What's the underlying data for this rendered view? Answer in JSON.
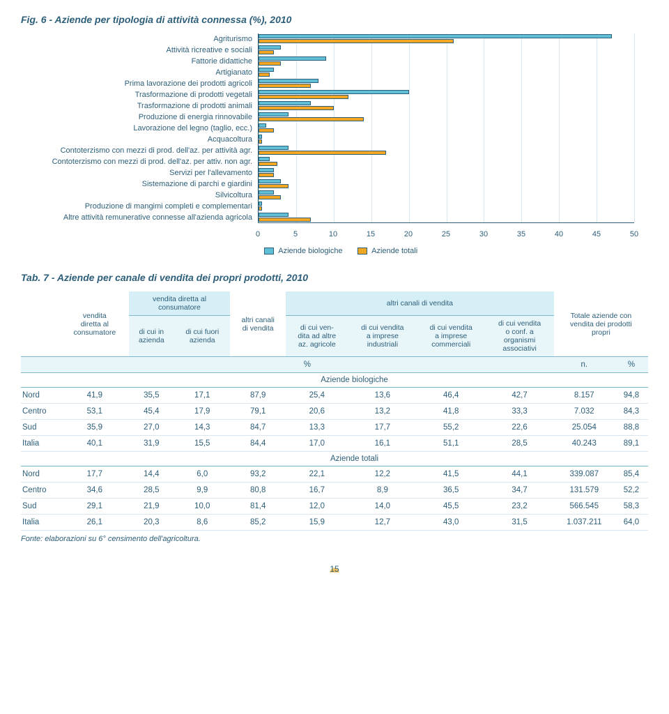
{
  "fig": {
    "title": "Fig. 6 - Aziende per tipologia di attività connessa (%), 2010",
    "categories": [
      "Agriturismo",
      "Attività ricreative e sociali",
      "Fattorie didattiche",
      "Artigianato",
      "Prima lavorazione dei prodotti agricoli",
      "Trasformazione di prodotti vegetali",
      "Trasformazione di prodotti animali",
      "Produzione di energia rinnovabile",
      "Lavorazione del legno (taglio, ecc.)",
      "Acquacoltura",
      "Contoterzismo con mezzi di prod. dell'az. per attività agr.",
      "Contoterzismo con mezzi di prod. dell'az. per attiv. non agr.",
      "Servizi per l'allevamento",
      "Sistemazione di parchi e giardini",
      "Silvicoltura",
      "Produzione di mangimi completi e complementari",
      "Altre attività remunerative connesse all'azienda agricola"
    ],
    "bio": [
      47,
      3,
      9,
      2,
      8,
      20,
      7,
      4,
      1,
      0.5,
      4,
      1.5,
      2,
      3,
      2,
      0.5,
      4
    ],
    "tot": [
      26,
      2,
      3,
      1.5,
      7,
      12,
      10,
      14,
      2,
      0.5,
      17,
      2.5,
      2,
      4,
      3,
      0.5,
      7
    ],
    "xmax": 50,
    "xtick_step": 5,
    "bar_colors": {
      "bio": "#5fbfd6",
      "tot": "#f5a623"
    },
    "grid_color": "#d9e6ed",
    "axis_color": "#2d5f7a",
    "legend": {
      "bio": "Aziende biologiche",
      "tot": "Aziende totali"
    }
  },
  "tab": {
    "title": "Tab. 7 - Aziende per canale di vendita dei propri prodotti, 2010",
    "headers": {
      "vendita": "vendita\ndiretta al\nconsumatore",
      "vend_group": "vendita diretta al\nconsumatore",
      "in_az": "di cui in\nazienda",
      "fuori_az": "di cui fuori\nazienda",
      "altri": "altri canali\ndi vendita",
      "altri_group": "altri canali di vendita",
      "ad_altre": "di cui ven-\ndita ad altre\naz. agricole",
      "industriali": "di cui vendita\na imprese\nindustriali",
      "commerciali": "di cui vendita\na imprese\ncommerciali",
      "organismi": "di cui vendita\no conf. a\norganismi\nassociativi",
      "totale": "Totale aziende con\nvendita dei prodotti\npropri",
      "pct": "%",
      "n": "n.",
      "bio_section": "Aziende biologiche",
      "tot_section": "Aziende totali"
    },
    "row_labels": [
      "Nord",
      "Centro",
      "Sud",
      "Italia"
    ],
    "bio_rows": [
      [
        "41,9",
        "35,5",
        "17,1",
        "87,9",
        "25,4",
        "13,6",
        "46,4",
        "42,7",
        "8.157",
        "94,8"
      ],
      [
        "53,1",
        "45,4",
        "17,9",
        "79,1",
        "20,6",
        "13,2",
        "41,8",
        "33,3",
        "7.032",
        "84,3"
      ],
      [
        "35,9",
        "27,0",
        "14,3",
        "84,7",
        "13,3",
        "17,7",
        "55,2",
        "22,6",
        "25.054",
        "88,8"
      ],
      [
        "40,1",
        "31,9",
        "15,5",
        "84,4",
        "17,0",
        "16,1",
        "51,1",
        "28,5",
        "40.243",
        "89,1"
      ]
    ],
    "tot_rows": [
      [
        "17,7",
        "14,4",
        "6,0",
        "93,2",
        "22,1",
        "12,2",
        "41,5",
        "44,1",
        "339.087",
        "85,4"
      ],
      [
        "34,6",
        "28,5",
        "9,9",
        "80,8",
        "16,7",
        "8,9",
        "36,5",
        "34,7",
        "131.579",
        "52,2"
      ],
      [
        "29,1",
        "21,9",
        "10,0",
        "81,4",
        "12,0",
        "14,0",
        "45,5",
        "23,2",
        "566.545",
        "58,3"
      ],
      [
        "26,1",
        "20,3",
        "8,6",
        "85,2",
        "15,9",
        "12,7",
        "43,0",
        "31,5",
        "1.037.211",
        "64,0"
      ]
    ],
    "source": "Fonte: elaborazioni su 6° censimento dell'agricoltura."
  },
  "page_number": "15"
}
